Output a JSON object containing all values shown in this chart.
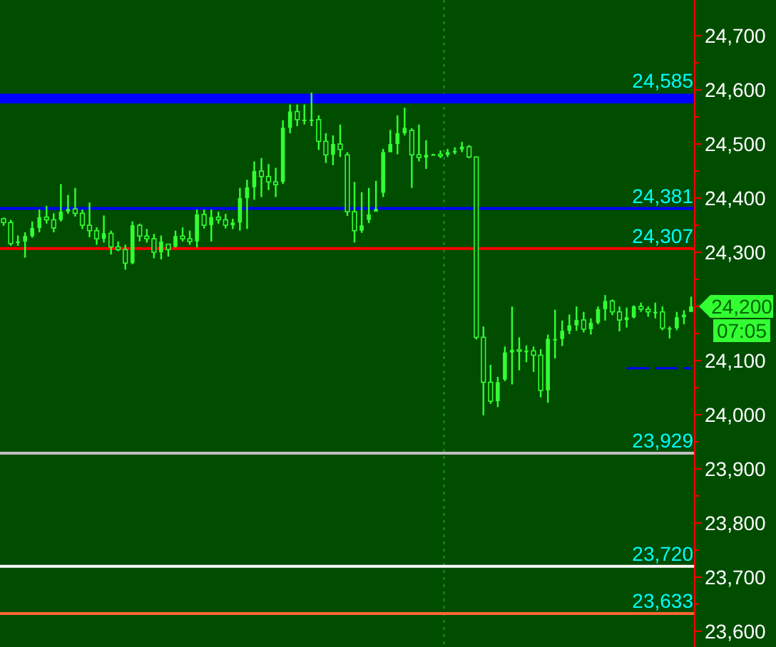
{
  "chart_data": {
    "type": "candlestick",
    "categories": [
      null,
      null,
      null,
      null,
      null,
      null,
      null,
      null,
      null,
      null,
      null,
      null,
      null,
      null,
      null,
      null,
      null,
      null,
      null,
      null,
      null,
      null,
      null,
      null,
      null,
      null,
      null,
      null,
      null,
      null,
      null,
      null,
      null,
      null,
      null,
      null,
      null,
      null,
      null,
      null,
      null,
      null,
      null,
      null,
      null,
      null,
      null,
      null,
      null,
      null,
      null,
      null,
      null,
      null,
      null,
      null,
      null,
      null,
      null,
      null,
      null,
      null,
      null,
      null,
      null,
      null,
      null,
      null,
      null,
      null,
      null,
      null,
      null,
      null,
      null,
      null,
      null,
      null,
      null,
      null,
      null,
      null,
      null,
      null,
      null,
      null,
      null,
      null,
      null,
      null,
      null,
      null,
      null,
      null,
      null,
      null,
      null
    ],
    "ylim": [
      23571,
      24766
    ],
    "yticks": [
      {
        "value": 23600,
        "label": "23,600"
      },
      {
        "value": 23650,
        "label": null
      },
      {
        "value": 23700,
        "label": "23,700"
      },
      {
        "value": 23750,
        "label": null
      },
      {
        "value": 23800,
        "label": "23,800"
      },
      {
        "value": 23850,
        "label": null
      },
      {
        "value": 23900,
        "label": "23,900"
      },
      {
        "value": 23950,
        "label": null
      },
      {
        "value": 24000,
        "label": "24,000"
      },
      {
        "value": 24050,
        "label": null
      },
      {
        "value": 24100,
        "label": "24,100"
      },
      {
        "value": 24150,
        "label": null
      },
      {
        "value": 24200,
        "label": null
      },
      {
        "value": 24250,
        "label": null
      },
      {
        "value": 24300,
        "label": "24,300"
      },
      {
        "value": 24350,
        "label": null
      },
      {
        "value": 24400,
        "label": "24,400"
      },
      {
        "value": 24450,
        "label": null
      },
      {
        "value": 24500,
        "label": "24,500"
      },
      {
        "value": 24550,
        "label": null
      },
      {
        "value": 24600,
        "label": "24,600"
      },
      {
        "value": 24650,
        "label": null
      },
      {
        "value": 24700,
        "label": "24,700"
      }
    ],
    "tick_labels": "y",
    "color": "#33ff33",
    "ohlc": [
      [
        24362,
        24364,
        24349,
        24355
      ],
      [
        24355,
        24360,
        24312,
        24316
      ],
      [
        24318,
        24331,
        24312,
        24320
      ],
      [
        24320,
        24337,
        24290,
        24330
      ],
      [
        24330,
        24357,
        24327,
        24345
      ],
      [
        24345,
        24379,
        24337,
        24365
      ],
      [
        24365,
        24386,
        24353,
        24360
      ],
      [
        24360,
        24372,
        24337,
        24345
      ],
      [
        24360,
        24426,
        24357,
        24375
      ],
      [
        24375,
        24406,
        24371,
        24380
      ],
      [
        24380,
        24419,
        24366,
        24372
      ],
      [
        24372,
        24379,
        24343,
        24350
      ],
      [
        24350,
        24392,
        24328,
        24340
      ],
      [
        24340,
        24346,
        24314,
        24325
      ],
      [
        24325,
        24368,
        24318,
        24335
      ],
      [
        24335,
        24340,
        24296,
        24310
      ],
      [
        24310,
        24320,
        24302,
        24305
      ],
      [
        24305,
        24314,
        24268,
        24280
      ],
      [
        24280,
        24357,
        24278,
        24350
      ],
      [
        24350,
        24353,
        24320,
        24330
      ],
      [
        24330,
        24343,
        24318,
        24325
      ],
      [
        24325,
        24334,
        24289,
        24300
      ],
      [
        24300,
        24331,
        24287,
        24320
      ],
      [
        24315,
        24315,
        24292,
        24305
      ],
      [
        24310,
        24340,
        24309,
        24330
      ],
      [
        24330,
        24346,
        24320,
        24325
      ],
      [
        24325,
        24340,
        24314,
        24320
      ],
      [
        24320,
        24379,
        24309,
        24370
      ],
      [
        24370,
        24379,
        24344,
        24350
      ],
      [
        24350,
        24379,
        24320,
        24365
      ],
      [
        24365,
        24375,
        24353,
        24360
      ],
      [
        24360,
        24371,
        24344,
        24350
      ],
      [
        24350,
        24362,
        24343,
        24355
      ],
      [
        24355,
        24419,
        24340,
        24400
      ],
      [
        24400,
        24434,
        24343,
        24420
      ],
      [
        24420,
        24468,
        24397,
        24450
      ],
      [
        24450,
        24474,
        24402,
        24440
      ],
      [
        24440,
        24463,
        24415,
        24430
      ],
      [
        24430,
        24456,
        24402,
        24425
      ],
      [
        24430,
        24544,
        24426,
        24530
      ],
      [
        24530,
        24573,
        24520,
        24560
      ],
      [
        24560,
        24573,
        24533,
        24545
      ],
      [
        24545,
        24573,
        24536,
        24545
      ],
      [
        24545,
        24595,
        24533,
        24545
      ],
      [
        24545,
        24553,
        24489,
        24505
      ],
      [
        24505,
        24520,
        24465,
        24480
      ],
      [
        24480,
        24516,
        24461,
        24500
      ],
      [
        24500,
        24536,
        24476,
        24490
      ],
      [
        24480,
        24485,
        24367,
        24375
      ],
      [
        24375,
        24430,
        24318,
        24340
      ],
      [
        24340,
        24411,
        24336,
        24350
      ],
      [
        24360,
        24419,
        24354,
        24370
      ],
      [
        24375,
        24432,
        24375,
        24380
      ],
      [
        24410,
        24491,
        24402,
        24485
      ],
      [
        24485,
        24526,
        24485,
        24500
      ],
      [
        24500,
        24553,
        24481,
        24520
      ],
      [
        24520,
        24567,
        24516,
        24530
      ],
      [
        24525,
        24529,
        24419,
        24480
      ],
      [
        24480,
        24536,
        24468,
        24475
      ],
      [
        24475,
        24507,
        24454,
        24480
      ],
      [
        24481,
        24482,
        24480,
        24481
      ],
      [
        24481,
        24488,
        24474,
        24478
      ],
      [
        24480,
        24491,
        24476,
        24485
      ],
      [
        24485,
        24494,
        24481,
        24487
      ],
      [
        24490,
        24504,
        24485,
        24495
      ],
      [
        24495,
        24498,
        24474,
        24476
      ],
      [
        24476,
        24477,
        24139,
        24143
      ],
      [
        24143,
        24163,
        23999,
        24060
      ],
      [
        24060,
        24092,
        24020,
        24025
      ],
      [
        24025,
        24070,
        24014,
        24060
      ],
      [
        24065,
        24126,
        24062,
        24115
      ],
      [
        24115,
        24200,
        24056,
        24120
      ],
      [
        24120,
        24143,
        24082,
        24118
      ],
      [
        24118,
        24128,
        24097,
        24118
      ],
      [
        24118,
        24126,
        24079,
        24110
      ],
      [
        24110,
        24121,
        24032,
        24045
      ],
      [
        24045,
        24148,
        24022,
        24140
      ],
      [
        24140,
        24194,
        24104,
        24140
      ],
      [
        24140,
        24174,
        24127,
        24155
      ],
      [
        24155,
        24185,
        24149,
        24165
      ],
      [
        24165,
        24200,
        24155,
        24175
      ],
      [
        24175,
        24190,
        24152,
        24158
      ],
      [
        24158,
        24178,
        24148,
        24170
      ],
      [
        24170,
        24200,
        24167,
        24195
      ],
      [
        24195,
        24221,
        24174,
        24210
      ],
      [
        24210,
        24213,
        24184,
        24190
      ],
      [
        24190,
        24200,
        24154,
        24175
      ],
      [
        24175,
        24198,
        24161,
        24180
      ],
      [
        24180,
        24202,
        24178,
        24200
      ],
      [
        24200,
        24207,
        24190,
        24195
      ],
      [
        24195,
        24200,
        24181,
        24190
      ],
      [
        24190,
        24207,
        24178,
        24190
      ],
      [
        24190,
        24200,
        24156,
        24160
      ],
      [
        24160,
        24163,
        24141,
        24160
      ],
      [
        24160,
        24190,
        24156,
        24180
      ],
      [
        24180,
        24193,
        24167,
        24185
      ],
      [
        24190,
        24218,
        24190,
        24200
      ]
    ],
    "series": [
      {
        "type": "line",
        "values": [
          null,
          null,
          null,
          null,
          null,
          null,
          null,
          null,
          null,
          null,
          null,
          null,
          null,
          null,
          null,
          null,
          null,
          null,
          null,
          null,
          null,
          null,
          null,
          null,
          null,
          null,
          null,
          null,
          null,
          null,
          null,
          null,
          null,
          null,
          null,
          null,
          null,
          null,
          null,
          null,
          null,
          null,
          null,
          null,
          null,
          null,
          null,
          null,
          null,
          null,
          null,
          null,
          null,
          null,
          null,
          null,
          null,
          null,
          null,
          null,
          null,
          null,
          null,
          null,
          null,
          null,
          null,
          null,
          null,
          null,
          null,
          null,
          null,
          null,
          null,
          null,
          null,
          null,
          null,
          null,
          null,
          null,
          null,
          null,
          null,
          null,
          null,
          24086,
          24086,
          24086,
          24086,
          24086,
          24086,
          24086,
          24086,
          24086,
          24086
        ],
        "color": "#0000ff",
        "line_style": "dashed"
      }
    ],
    "bands": [
      {
        "axis": "y",
        "from": 24575,
        "to": 24593,
        "label": "24,585",
        "color": "#0000ff"
      }
    ],
    "ref_lines": [
      {
        "axis": "y",
        "value": 24381,
        "label": "24,381",
        "color": "#0000ff"
      },
      {
        "axis": "y",
        "value": 24307,
        "label": "24,307",
        "color": "#ff0000"
      },
      {
        "axis": "y",
        "value": 23929,
        "label": "23,929",
        "color": "#c0c0c0"
      },
      {
        "axis": "y",
        "value": 23720,
        "label": "23,720",
        "color": "#ffffff"
      },
      {
        "axis": "y",
        "value": 23633,
        "label": "23,633",
        "color": "#ff6633"
      }
    ],
    "annotations": [
      "24,200",
      "07:05"
    ]
  }
}
